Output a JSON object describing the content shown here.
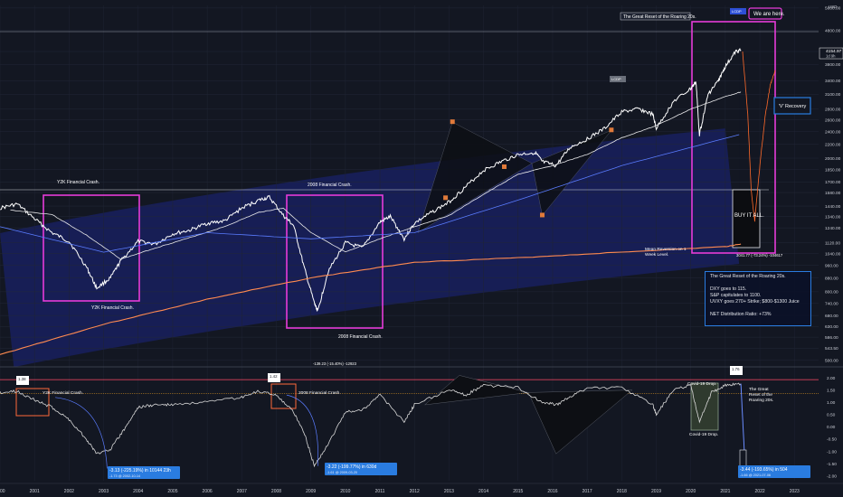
{
  "chart_data": [
    {
      "type": "line",
      "title": "",
      "ylabel": "USD",
      "y_scale": "log",
      "ylim": [
        490,
        5700
      ],
      "yticks": [
        "5600.00",
        "4800.00",
        "4154.97",
        "3800.00",
        "3400.00",
        "3100.00",
        "2800.00",
        "2600.00",
        "2400.00",
        "2200.00",
        "2000.00",
        "1850.00",
        "1700.00",
        "1580.00",
        "1440.00",
        "1340.00",
        "1240.00",
        "1120.00",
        "1040.00",
        "960.00",
        "880.00",
        "800.00",
        "740.00",
        "680.00",
        "630.00",
        "586.00",
        "543.50",
        "500.00"
      ],
      "x_ticks": [
        "2000",
        "2001",
        "2002",
        "2003",
        "2004",
        "2005",
        "2006",
        "2007",
        "2008",
        "2009",
        "2010",
        "2011",
        "2012",
        "2013",
        "2014",
        "2015",
        "2016",
        "2017",
        "2018",
        "2019",
        "2020",
        "2021",
        "2022",
        "2023"
      ],
      "series": [
        {
          "name": "",
          "color": "#ffffff",
          "x": [
            2000.0,
            2000.5,
            2001.0,
            2001.5,
            2002.0,
            2002.5,
            2002.8,
            2003.2,
            2003.5,
            2004.0,
            2004.5,
            2005.0,
            2005.5,
            2006.0,
            2006.5,
            2007.0,
            2007.5,
            2007.8,
            2008.2,
            2008.5,
            2008.8,
            2009.1,
            2009.2,
            2009.5,
            2010.0,
            2010.5,
            2011.0,
            2011.3,
            2011.7,
            2012.0,
            2012.5,
            2013.0,
            2013.5,
            2014.0,
            2014.5,
            2015.0,
            2015.5,
            2015.7,
            2016.1,
            2016.5,
            2017.0,
            2017.5,
            2018.0,
            2018.5,
            2018.9,
            2019.0,
            2019.5,
            2020.0,
            2020.15,
            2020.25,
            2020.5,
            2020.8,
            2021.0,
            2021.3,
            2021.45
          ],
          "y": [
            1420,
            1460,
            1320,
            1200,
            1130,
            950,
            820,
            880,
            990,
            1130,
            1110,
            1190,
            1220,
            1280,
            1300,
            1420,
            1500,
            1530,
            1350,
            1260,
            950,
            740,
            700,
            920,
            1120,
            1080,
            1290,
            1340,
            1150,
            1280,
            1380,
            1480,
            1650,
            1840,
            1950,
            2050,
            2080,
            1950,
            1900,
            2150,
            2280,
            2450,
            2750,
            2800,
            2700,
            2450,
            2950,
            3220,
            3380,
            2350,
            3100,
            3400,
            3750,
            4150,
            4200
          ]
        },
        {
          "name": "",
          "color": "#e8e8ea",
          "x": [
            2000.3,
            2001.5,
            2002.5,
            2003.5,
            2004.5,
            2005.5,
            2006.5,
            2007.5,
            2008.2,
            2009.0,
            2010.0,
            2011.0,
            2012.0,
            2013.0,
            2014.0,
            2015.0,
            2016.0,
            2017.0,
            2018.0,
            2019.0,
            2020.0,
            2021.0,
            2021.45
          ],
          "y": [
            1400,
            1360,
            1180,
            1000,
            1080,
            1160,
            1250,
            1380,
            1420,
            1200,
            1050,
            1150,
            1250,
            1350,
            1560,
            1790,
            1900,
            2050,
            2300,
            2500,
            2800,
            3050,
            3150
          ]
        },
        {
          "name": "",
          "color": "#ff8a50",
          "x": [
            2000.0,
            2003.0,
            2006.0,
            2009.0,
            2012.0,
            2015.0,
            2018.0,
            2021.0,
            2021.45
          ],
          "y": [
            520,
            640,
            760,
            880,
            980,
            1010,
            1050,
            1090,
            1110
          ]
        },
        {
          "name": "",
          "color": "#ff6a2a",
          "x": [
            2021.5,
            2021.65,
            2021.75,
            2021.85,
            2022.0,
            2022.15,
            2022.3,
            2022.45
          ],
          "y": [
            4150,
            2700,
            1600,
            1300,
            1900,
            2650,
            3300,
            3650
          ]
        }
      ],
      "annotations": [
        {
          "text": "Y2K Financial Crash.",
          "x": 2000.9,
          "y": 1560
        },
        {
          "text": "2008 Financial Crash.",
          "x": 2008.6,
          "y": 1520
        },
        {
          "text": "Y2K Financial Crash.",
          "x": 2002.2,
          "y": 760
        },
        {
          "text": "2008 Financial Crash.",
          "x": 2009.5,
          "y": 600
        },
        {
          "text": "The Great Reset of the Roaring 20s.",
          "x": 2019.5,
          "y": 5380
        },
        {
          "text": "We are here.",
          "x": 2021.7,
          "y": 5500
        },
        {
          "text": "'V' Recovery",
          "x": 2023.0,
          "y": 2720
        },
        {
          "text": "BUY IT ALL.",
          "x": 2021.75,
          "y": 1380
        },
        {
          "text": "Mean Reversion on 1 Week Level.",
          "x": 2019.0,
          "y": 1050
        },
        {
          "text": "-139.23 (-15.40%) -12923",
          "x": 2009.3,
          "y": 525
        },
        {
          "text": "3041.77 (-73.24%) -104617",
          "x": 2021.5,
          "y": 1015
        },
        {
          "text": "LCDP",
          "x": 2018.1,
          "y": 2850
        },
        {
          "text": "LCDP",
          "x": 2021.5,
          "y": 5450
        }
      ],
      "info_box": {
        "title": "The Great Reset of the Roaring 20s.",
        "lines": [
          "DXY goes to 115.",
          "S&P capitulates to 1100.",
          "UVXY goes 270+ Strike; $800-$1300 Juice",
          "NET Distribution Ratio: +73%"
        ]
      },
      "price_label": "4154.97",
      "price_sub": "1d 9h"
    },
    {
      "type": "line",
      "title": "",
      "ylim": [
        -2.2,
        2.3
      ],
      "yticks": [
        "2.00",
        "1.50",
        "1.00",
        "0.50",
        "0.00",
        "-0.50",
        "-1.00",
        "-1.50",
        "-2.00"
      ],
      "series": [
        {
          "name": "",
          "color": "#d8d8d8",
          "x": [
            2000.0,
            2000.5,
            2001.0,
            2001.5,
            2002.0,
            2002.5,
            2002.8,
            2003.2,
            2003.6,
            2004.0,
            2004.5,
            2005.0,
            2006.0,
            2007.0,
            2007.5,
            2008.0,
            2008.5,
            2008.8,
            2009.1,
            2009.5,
            2010.0,
            2010.5,
            2011.0,
            2011.7,
            2012.0,
            2013.0,
            2013.5,
            2014.0,
            2015.0,
            2015.7,
            2016.1,
            2016.5,
            2017.0,
            2018.0,
            2018.9,
            2019.0,
            2019.5,
            2020.0,
            2020.25,
            2020.6,
            2021.0,
            2021.45
          ],
          "y": [
            1.4,
            1.45,
            1.1,
            0.8,
            0.3,
            -0.5,
            -1.1,
            -0.9,
            -0.1,
            0.8,
            0.9,
            0.9,
            1.0,
            1.2,
            1.45,
            1.3,
            0.6,
            -0.2,
            -1.6,
            -0.7,
            0.6,
            0.7,
            1.3,
            0.2,
            0.9,
            1.5,
            1.3,
            1.7,
            1.6,
            1.0,
            0.9,
            1.2,
            1.6,
            1.6,
            0.9,
            0.5,
            1.5,
            1.7,
            0.2,
            1.4,
            1.7,
            1.76
          ]
        },
        {
          "name": "",
          "color": "#6a8cff",
          "x": [
            2021.45,
            2021.55,
            2021.62
          ],
          "y": [
            1.76,
            -1.0,
            -2.0
          ]
        }
      ],
      "annotations": [
        {
          "text": "1.38",
          "x": 2000.0,
          "y": 1.92
        },
        {
          "text": "Y2K Financial Crash.",
          "x": 2000.9,
          "y": 1.1
        },
        {
          "text": "1.42",
          "x": 2007.8,
          "y": 2.0
        },
        {
          "text": "2008 Financial Crash.",
          "x": 2008.7,
          "y": 1.1
        },
        {
          "text": "1.76",
          "x": 2021.5,
          "y": 2.2
        },
        {
          "text": "The Great Reset of the Roaring 20s.",
          "x": 2022.1,
          "y": 1.25
        },
        {
          "text": "Covid-19 Drop.",
          "x": 2020.5,
          "y": 1.92
        },
        {
          "text": "Covid-19 Drop.",
          "x": 2020.7,
          "y": -0.72
        }
      ],
      "callouts": [
        {
          "text": "-3.13 (-225.19%) in 10144 23h",
          "sub": "-1.73 @ 2002-10-14"
        },
        {
          "text": "-3.22 (-199.77%) in 630d",
          "sub": "-1.61 @ 2009-03-20"
        },
        {
          "text": "-3.44 (-193.65%) in 504",
          "sub": "-1.66 @ 2021-07-06"
        }
      ]
    }
  ]
}
